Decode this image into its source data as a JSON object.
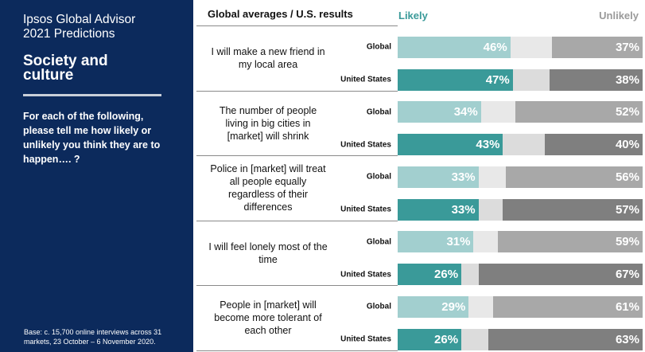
{
  "sidebar": {
    "brand_line1": "Ipsos Global Advisor",
    "brand_line2": "2021 Predictions",
    "section_line1": "Society and",
    "section_line2": "culture",
    "question": "For each of the following, please tell me how likely or unlikely you think they are to happen…. ?",
    "base": "Base: c. 15,700 online interviews across 31 markets,  23 October – 6 November 2020."
  },
  "header": {
    "title": "Global averages / U.S. results"
  },
  "colors": {
    "global_likely": "#a2cfcf",
    "us_likely": "#3a9a99",
    "neutral_global": "#e8e8e8",
    "neutral_us": "#dcdcdc",
    "global_unlikely": "#a8a8a8",
    "us_unlikely": "#7f7f7f",
    "likely_text": "#3a9a99",
    "unlikely_text": "#9a9a9a"
  },
  "chart_data": {
    "type": "bar",
    "title": "Global averages / U.S. results",
    "orientation": "horizontal-stacked",
    "legend": [
      "Likely",
      "Unlikely"
    ],
    "legend_placement": "top",
    "groups": [
      {
        "statement": "I will make a new friend in my local area",
        "rows": [
          {
            "name": "Global",
            "likely": 46,
            "unlikely": 37
          },
          {
            "name": "United States",
            "likely": 47,
            "unlikely": 38
          }
        ]
      },
      {
        "statement": "The number of people living in big cities in [market] will shrink",
        "rows": [
          {
            "name": "Global",
            "likely": 34,
            "unlikely": 52
          },
          {
            "name": "United States",
            "likely": 43,
            "unlikely": 40
          }
        ]
      },
      {
        "statement": "Police in [market] will treat all people equally regardless of their differences",
        "rows": [
          {
            "name": "Global",
            "likely": 33,
            "unlikely": 56
          },
          {
            "name": "United States",
            "likely": 33,
            "unlikely": 57
          }
        ]
      },
      {
        "statement": "I will feel lonely most of the time",
        "rows": [
          {
            "name": "Global",
            "likely": 31,
            "unlikely": 59
          },
          {
            "name": "United States",
            "likely": 26,
            "unlikely": 67
          }
        ]
      },
      {
        "statement": "People in [market] will become more tolerant of each other",
        "rows": [
          {
            "name": "Global",
            "likely": 29,
            "unlikely": 61
          },
          {
            "name": "United States",
            "likely": 26,
            "unlikely": 63
          }
        ]
      }
    ]
  }
}
